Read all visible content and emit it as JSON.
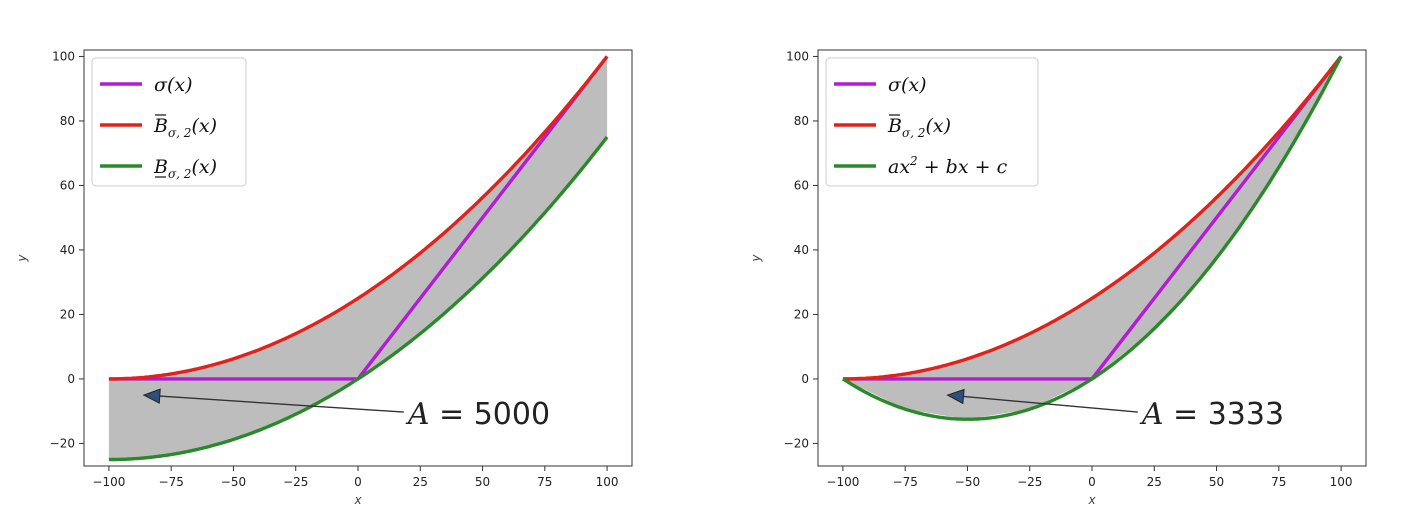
{
  "chart_data": [
    {
      "type": "line",
      "xlabel": "x",
      "ylabel": "y",
      "xlim": [
        -110,
        110
      ],
      "ylim": [
        -27,
        102
      ],
      "xticks": [
        "−100",
        "−75",
        "−50",
        "−25",
        "0",
        "25",
        "50",
        "75",
        "100"
      ],
      "yticks": [
        "−20",
        "0",
        "20",
        "40",
        "60",
        "80",
        "100"
      ],
      "legend_position": "top-left",
      "fill_between": {
        "upper": "B_upper",
        "lower": "B_lower",
        "color": "#bdbdbd"
      },
      "series": [
        {
          "key": "sigma",
          "name": "σ(x)",
          "color": "#b31bd4",
          "x": [
            -100,
            0,
            100
          ],
          "y": [
            0,
            0,
            100
          ]
        },
        {
          "key": "B_upper",
          "name": "B̄σ,2(x)",
          "color": "#e0221b",
          "x": [
            -100,
            -75,
            -50,
            -25,
            0,
            25,
            50,
            75,
            100
          ],
          "y": [
            0,
            1.56,
            6.25,
            14.06,
            25,
            39.06,
            56.25,
            76.56,
            100
          ]
        },
        {
          "key": "B_lower",
          "name": "B̲σ,2(x)",
          "color": "#2a8a2a",
          "x": [
            -100,
            -75,
            -50,
            -25,
            0,
            25,
            50,
            75,
            100
          ],
          "y": [
            -25,
            -23.44,
            -18.75,
            -10.94,
            0,
            14.06,
            31.25,
            51.56,
            75
          ]
        }
      ],
      "annotation": {
        "text": "A = 5000",
        "text_at": [
          20,
          -14
        ],
        "arrow_to": [
          -86,
          -5
        ]
      }
    },
    {
      "type": "line",
      "xlabel": "x",
      "ylabel": "y",
      "xlim": [
        -110,
        110
      ],
      "ylim": [
        -27,
        102
      ],
      "xticks": [
        "−100",
        "−75",
        "−50",
        "−25",
        "0",
        "25",
        "50",
        "75",
        "100"
      ],
      "yticks": [
        "−20",
        "0",
        "20",
        "40",
        "60",
        "80",
        "100"
      ],
      "legend_position": "top-left",
      "fill_between": {
        "upper": "B_upper",
        "lower": "quad",
        "color": "#bdbdbd"
      },
      "series": [
        {
          "key": "sigma",
          "name": "σ(x)",
          "color": "#b31bd4",
          "x": [
            -100,
            0,
            100
          ],
          "y": [
            0,
            0,
            100
          ]
        },
        {
          "key": "B_upper",
          "name": "B̄σ,2(x)",
          "color": "#e0221b",
          "x": [
            -100,
            -75,
            -50,
            -25,
            0,
            25,
            50,
            75,
            100
          ],
          "y": [
            0,
            1.56,
            6.25,
            14.06,
            25,
            39.06,
            56.25,
            76.56,
            100
          ]
        },
        {
          "key": "quad",
          "name": "ax² + bx + c",
          "color": "#2a8a2a",
          "x": [
            -100,
            -75,
            -50,
            -25,
            0,
            25,
            50,
            75,
            100
          ],
          "y": [
            0,
            -9.38,
            -12.5,
            -9.38,
            0,
            15.63,
            37.5,
            65.63,
            100
          ]
        }
      ],
      "annotation": {
        "text": "A = 3333",
        "text_at": [
          20,
          -14
        ],
        "arrow_to": [
          -58,
          -5
        ]
      }
    }
  ]
}
